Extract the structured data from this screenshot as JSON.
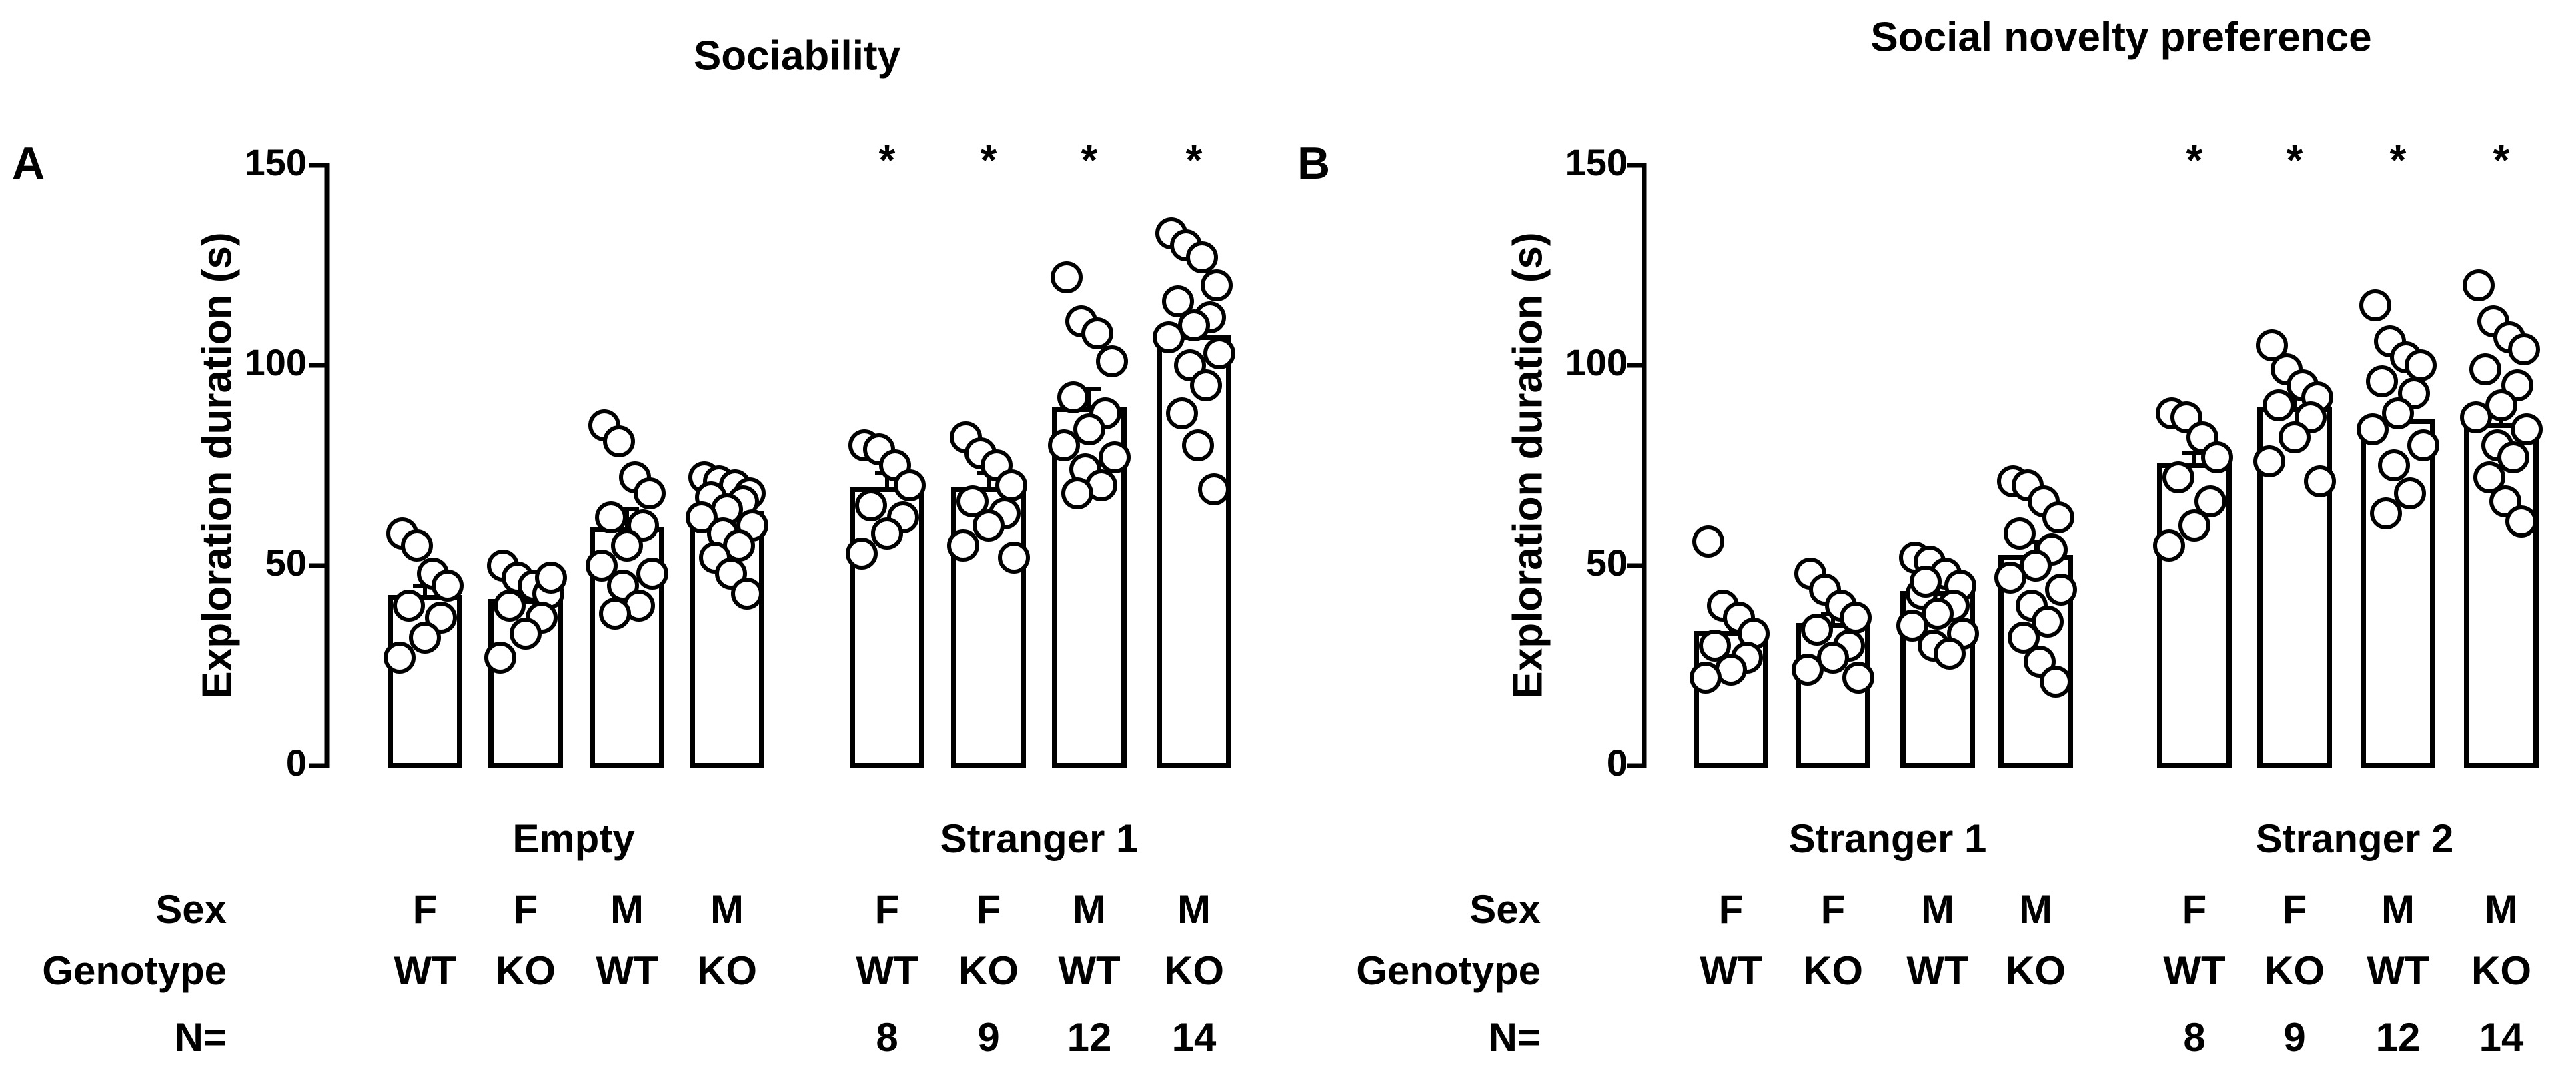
{
  "categories": [
    "F WT",
    "F KO",
    "M WT",
    "M KO"
  ],
  "sex": [
    "F",
    "F",
    "M",
    "M"
  ],
  "genotype": [
    "WT",
    "KO",
    "WT",
    "KO"
  ],
  "n": [
    "8",
    "9",
    "12",
    "14"
  ],
  "row_labels": {
    "sex": "Sex",
    "genotype": "Genotype",
    "n": "N="
  },
  "chart_data": [
    {
      "type": "bar",
      "panel": "A",
      "title": "Sociability",
      "ylabel": "Exploration duration (s)",
      "ylim": [
        0,
        150
      ],
      "yticks": [
        0,
        50,
        100,
        150
      ],
      "grid": false,
      "groups": [
        {
          "label": "Empty",
          "means": [
            42,
            41,
            59,
            63
          ],
          "errors": [
            3,
            3,
            5,
            3
          ],
          "points": [
            [
              58,
              55,
              48,
              45,
              40,
              37,
              32,
              27
            ],
            [
              50,
              47,
              45,
              43,
              40,
              37,
              33,
              27,
              47
            ],
            [
              85,
              81,
              72,
              68,
              62,
              60,
              55,
              50,
              48,
              45,
              40,
              38
            ],
            [
              72,
              71,
              70,
              68,
              67,
              66,
              64,
              62,
              60,
              58,
              55,
              52,
              48,
              43
            ]
          ],
          "stars": [
            "",
            "",
            "",
            ""
          ],
          "show_n": false
        },
        {
          "label": "Stranger 1",
          "means": [
            69,
            69,
            89,
            107
          ],
          "errors": [
            4,
            4,
            5,
            4
          ],
          "points": [
            [
              80,
              79,
              75,
              70,
              65,
              62,
              58,
              53
            ],
            [
              82,
              78,
              75,
              70,
              66,
              63,
              60,
              55,
              52
            ],
            [
              122,
              111,
              108,
              101,
              92,
              88,
              84,
              80,
              77,
              74,
              70,
              68
            ],
            [
              133,
              130,
              127,
              120,
              116,
              112,
              110,
              107,
              103,
              100,
              95,
              88,
              80,
              69
            ]
          ],
          "stars": [
            "*",
            "*",
            "*",
            "*"
          ],
          "show_n": true
        }
      ]
    },
    {
      "type": "bar",
      "panel": "B",
      "title": "Social novelty preference",
      "ylabel": "Exploration duration (s)",
      "ylim": [
        0,
        150
      ],
      "yticks": [
        0,
        50,
        100,
        150
      ],
      "grid": false,
      "groups": [
        {
          "label": "Stranger 1",
          "means": [
            33,
            35,
            43,
            52
          ],
          "errors": [
            4,
            3,
            3,
            4
          ],
          "points": [
            [
              56,
              40,
              37,
              33,
              30,
              27,
              24,
              22
            ],
            [
              48,
              44,
              40,
              37,
              34,
              30,
              27,
              24,
              22
            ],
            [
              52,
              51,
              48,
              45,
              43,
              40,
              38,
              35,
              33,
              30,
              28,
              46
            ],
            [
              71,
              70,
              66,
              62,
              58,
              54,
              50,
              47,
              44,
              40,
              36,
              32,
              26,
              21
            ]
          ],
          "stars": [
            "",
            "",
            "",
            ""
          ],
          "show_n": false
        },
        {
          "label": "Stranger 2",
          "means": [
            75,
            89,
            86,
            85
          ],
          "errors": [
            3,
            3,
            4,
            4
          ],
          "points": [
            [
              88,
              87,
              82,
              77,
              72,
              66,
              60,
              55
            ],
            [
              105,
              99,
              95,
              92,
              90,
              87,
              82,
              76,
              71
            ],
            [
              115,
              106,
              102,
              100,
              96,
              93,
              88,
              84,
              80,
              75,
              68,
              63
            ],
            [
              120,
              111,
              107,
              104,
              99,
              95,
              90,
              87,
              84,
              80,
              77,
              72,
              66,
              61
            ]
          ],
          "stars": [
            "*",
            "*",
            "*",
            "*"
          ],
          "show_n": true
        }
      ]
    }
  ]
}
